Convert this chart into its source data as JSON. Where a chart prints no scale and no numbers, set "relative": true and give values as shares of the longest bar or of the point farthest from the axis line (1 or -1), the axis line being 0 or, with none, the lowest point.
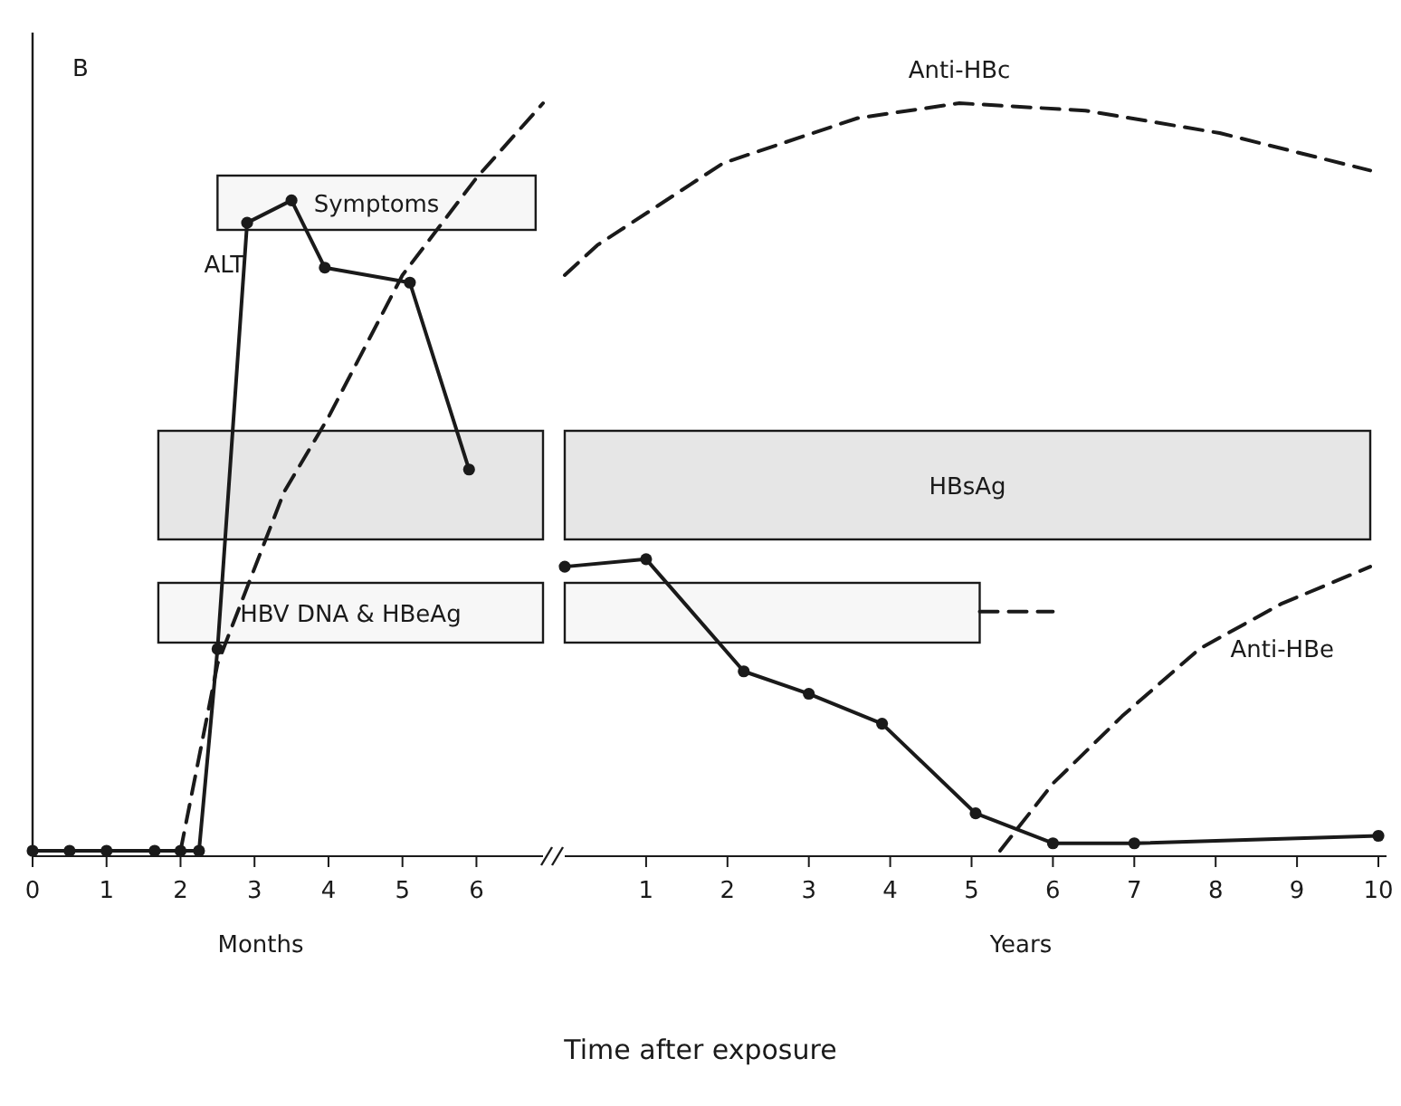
{
  "chart_data": [
    {
      "type": "line",
      "title": "B",
      "relative": true,
      "xlabel": "Months",
      "xlim": [
        0,
        6.9
      ],
      "xticks": [
        0,
        1,
        2,
        3,
        4,
        5,
        6
      ],
      "series": [
        {
          "name": "ALT",
          "color": "#1a1a1a",
          "marker": "circle",
          "line_style": "solid",
          "x": [
            0,
            0.5,
            1,
            1.65,
            2,
            2.25,
            2.5,
            2.9,
            3.5,
            3.95,
            5.1,
            5.9
          ],
          "values": [
            0,
            0,
            0,
            0,
            0,
            0,
            0.27,
            0.84,
            0.87,
            0.78,
            0.76,
            0.51
          ]
        },
        {
          "color": "#1a1a1a",
          "marker": "none",
          "line_style": "dashed",
          "x": [
            2,
            2.5,
            3.4,
            4,
            5,
            6,
            6.9
          ],
          "values": [
            0,
            0.25,
            0.48,
            0.58,
            0.77,
            0.9,
            1
          ]
        }
      ],
      "bands": [
        {
          "axis": "x",
          "from": 2.5,
          "to": 6.8,
          "label": "Symptoms",
          "color": "#f7f7f7"
        },
        {
          "axis": "x",
          "from": 1.7,
          "to": 6.9,
          "color": "#e6e6e6"
        },
        {
          "axis": "x",
          "from": 1.7,
          "to": 6.9,
          "label": "HBV DNA & HBeAg",
          "color": "#f7f7f7"
        }
      ]
    },
    {
      "type": "line",
      "relative": true,
      "xlabel": "Years",
      "xlim": [
        0,
        10.1
      ],
      "xticks": [
        1,
        2,
        3,
        4,
        5,
        6,
        7,
        8,
        9,
        10
      ],
      "annotations": [
        "Time after exposure"
      ],
      "series": [
        {
          "color": "#1a1a1a",
          "marker": "circle",
          "line_style": "solid",
          "x": [
            0,
            1,
            2.2,
            3,
            3.9,
            5.05,
            6,
            7,
            10
          ],
          "values": [
            0.38,
            0.39,
            0.24,
            0.21,
            0.17,
            0.05,
            0.01,
            0.01,
            0.02
          ]
        },
        {
          "name": "Anti-HBc",
          "color": "#1a1a1a",
          "marker": "none",
          "line_style": "dashed",
          "x": [
            0,
            0.4,
            1.95,
            3.6,
            4.85,
            6.4,
            8.05,
            9.9
          ],
          "values": [
            0.77,
            0.81,
            0.92,
            0.98,
            1,
            0.99,
            0.96,
            0.91
          ]
        },
        {
          "name": "Anti-HBe",
          "color": "#1a1a1a",
          "marker": "none",
          "line_style": "dashed",
          "x": [
            5.35,
            6,
            6.85,
            7.8,
            8.8,
            9.9
          ],
          "values": [
            0,
            0.09,
            0.18,
            0.27,
            0.33,
            0.38
          ]
        },
        {
          "color": "#1a1a1a",
          "marker": "none",
          "line_style": "dashed",
          "x": [
            5.1,
            6.0
          ],
          "values": [
            0.32,
            0.32
          ]
        }
      ],
      "bands": [
        {
          "axis": "x",
          "from": 0,
          "to": 9.9,
          "label": "HBsAg",
          "color": "#e6e6e6"
        },
        {
          "axis": "x",
          "from": 0,
          "to": 5.1,
          "color": "#f7f7f7"
        }
      ]
    }
  ]
}
